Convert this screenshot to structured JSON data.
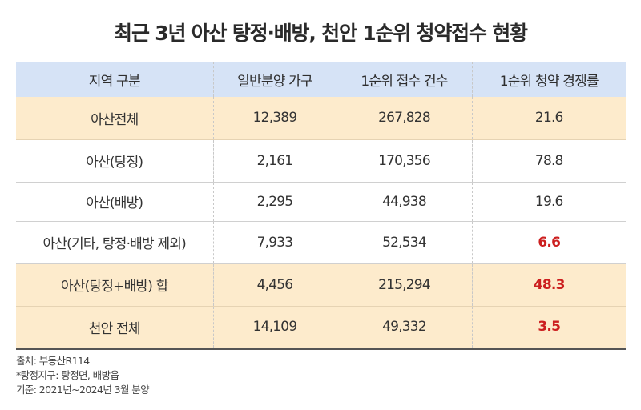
{
  "title": "최근 3년 아산 탕정·배방, 천안 1순위 청약접수 현황",
  "table": {
    "headers": [
      "지역 구분",
      "일반분양 가구",
      "1순위 접수 건수",
      "1순위 청약 경쟁률"
    ],
    "rows": [
      {
        "region": "아산전체",
        "households": "12,389",
        "applications": "267,828",
        "ratio": "21.6",
        "highlight": true,
        "ratio_red": false
      },
      {
        "region": "아산(탕정)",
        "households": "2,161",
        "applications": "170,356",
        "ratio": "78.8",
        "highlight": false,
        "ratio_red": false
      },
      {
        "region": "아산(배방)",
        "households": "2,295",
        "applications": "44,938",
        "ratio": "19.6",
        "highlight": false,
        "ratio_red": false
      },
      {
        "region": "아산(기타, 탕정·배방 제외)",
        "households": "7,933",
        "applications": "52,534",
        "ratio": "6.6",
        "highlight": false,
        "ratio_red": true
      },
      {
        "region": "아산(탕정+배방) 합",
        "households": "4,456",
        "applications": "215,294",
        "ratio": "48.3",
        "highlight": true,
        "ratio_red": true
      },
      {
        "region": "천안 전체",
        "households": "14,109",
        "applications": "49,332",
        "ratio": "3.5",
        "highlight": true,
        "ratio_red": true
      }
    ]
  },
  "notes": [
    "출처: 부동산R114",
    "*탕정지구: 탕정면, 배방읍",
    "기준: 2021년~2024년 3월 분양"
  ],
  "colors": {
    "header_bg": "#d6e3f6",
    "highlight_bg": "#fdebcc",
    "emphasis_red": "#cc1f1f",
    "bottom_border": "#555555"
  }
}
